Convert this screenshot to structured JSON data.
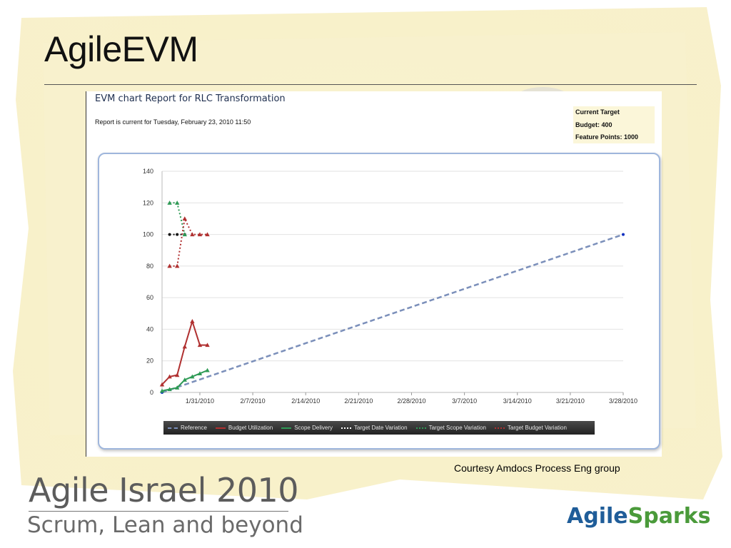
{
  "slide": {
    "title": "AgileEVM",
    "courtesy": "Courtesy Amdocs Process Eng group",
    "footer_title": "Agile Israel 2010",
    "footer_subtitle": "Scrum, Lean and beyond",
    "logo_part1": "Agile",
    "logo_part2": "Sparks"
  },
  "report": {
    "title": "EVM chart Report for RLC Transformation",
    "status": "Report is current for Tuesday, February 23, 2010 11:50",
    "target_heading": "Current Target",
    "target_budget": "Budget: 400",
    "target_points": "Feature Points: 1000"
  },
  "colors": {
    "reference": "#7b8fba",
    "budget": "#b03030",
    "scope": "#2e9a55",
    "date_var": "#111111",
    "scope_var": "#2e9a55",
    "budget_var": "#b03030"
  },
  "chart_data": {
    "type": "line",
    "ylim": [
      0,
      140
    ],
    "yticks": [
      "0",
      "20",
      "40",
      "60",
      "80",
      "100",
      "120",
      "140"
    ],
    "xlim": [
      "2010-01-26",
      "2010-03-28"
    ],
    "xticks": [
      "1/31/2010",
      "2/7/2010",
      "2/14/2010",
      "2/21/2010",
      "2/28/2010",
      "3/7/2010",
      "3/14/2010",
      "3/21/2010",
      "3/28/2010"
    ],
    "grid": true,
    "legend": "bottom",
    "series": [
      {
        "name": "Reference",
        "style": "dashed",
        "x": [
          "2010-01-26",
          "2010-03-28"
        ],
        "y": [
          0,
          100
        ]
      },
      {
        "name": "Budget Utilization",
        "style": "solid",
        "x": [
          "2010-01-26",
          "2010-01-27",
          "2010-01-28",
          "2010-01-29",
          "2010-01-30",
          "2010-01-31",
          "2010-02-01"
        ],
        "y": [
          5,
          10,
          11,
          29,
          45,
          30,
          30
        ]
      },
      {
        "name": "Scope Delivery",
        "style": "solid",
        "x": [
          "2010-01-26",
          "2010-01-27",
          "2010-01-28",
          "2010-01-29",
          "2010-01-30",
          "2010-01-31",
          "2010-02-01"
        ],
        "y": [
          1,
          2,
          3,
          8,
          10,
          12,
          14
        ]
      },
      {
        "name": "Target Date Variation",
        "style": "dotted",
        "x": [
          "2010-01-27",
          "2010-01-28",
          "2010-01-29"
        ],
        "y": [
          100,
          100,
          100
        ]
      },
      {
        "name": "Target Scope Variation",
        "style": "dotted",
        "x": [
          "2010-01-27",
          "2010-01-28",
          "2010-01-29"
        ],
        "y": [
          120,
          120,
          100
        ]
      },
      {
        "name": "Target Budget Variation",
        "style": "dotted",
        "x": [
          "2010-01-27",
          "2010-01-28",
          "2010-01-29",
          "2010-01-30",
          "2010-01-31",
          "2010-02-01"
        ],
        "y": [
          80,
          80,
          110,
          100,
          100,
          100
        ]
      }
    ]
  }
}
